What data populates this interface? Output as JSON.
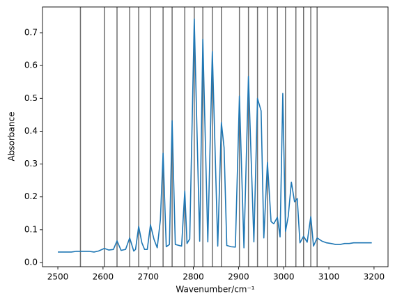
{
  "chart_data": {
    "type": "line",
    "xlabel": "Wavenumber/cm⁻¹",
    "ylabel": "Absorbance",
    "x": [
      2500,
      2510,
      2520,
      2530,
      2540,
      2550,
      2560,
      2570,
      2580,
      2590,
      2603,
      2613,
      2623,
      2631,
      2640,
      2650,
      2659,
      2668,
      2672,
      2679,
      2686,
      2692,
      2698,
      2705,
      2713,
      2720,
      2727,
      2733,
      2740,
      2747,
      2753,
      2760,
      2774,
      2781,
      2786,
      2792,
      2802,
      2814,
      2821,
      2832,
      2842,
      2854,
      2862,
      2868,
      2874,
      2884,
      2893,
      2902,
      2912,
      2922,
      2934,
      2942,
      2950,
      2956,
      2964,
      2972,
      2978,
      2986,
      2992,
      2998,
      3004,
      3010,
      3017,
      3024,
      3030,
      3036,
      3044,
      3052,
      3060,
      3066,
      3074,
      3085,
      3095,
      3105,
      3115,
      3125,
      3135,
      3145,
      3155,
      3165,
      3175,
      3185,
      3195
    ],
    "series": [
      {
        "color": "#1f77b4",
        "values": [
          0.032,
          0.032,
          0.032,
          0.032,
          0.034,
          0.034,
          0.034,
          0.034,
          0.032,
          0.035,
          0.043,
          0.038,
          0.04,
          0.066,
          0.037,
          0.04,
          0.075,
          0.035,
          0.04,
          0.11,
          0.06,
          0.04,
          0.04,
          0.115,
          0.07,
          0.045,
          0.13,
          0.333,
          0.048,
          0.055,
          0.432,
          0.055,
          0.05,
          0.218,
          0.058,
          0.072,
          0.742,
          0.065,
          0.68,
          0.063,
          0.643,
          0.05,
          0.427,
          0.35,
          0.052,
          0.048,
          0.047,
          0.507,
          0.045,
          0.567,
          0.063,
          0.5,
          0.462,
          0.075,
          0.305,
          0.125,
          0.118,
          0.138,
          0.078,
          0.515,
          0.095,
          0.14,
          0.245,
          0.185,
          0.195,
          0.06,
          0.08,
          0.062,
          0.14,
          0.05,
          0.075,
          0.065,
          0.06,
          0.058,
          0.055,
          0.055,
          0.058,
          0.058,
          0.06,
          0.06,
          0.06,
          0.06,
          0.06
        ]
      }
    ],
    "vlines": [
      2550,
      2603,
      2631,
      2659,
      2679,
      2705,
      2733,
      2753,
      2781,
      2802,
      2821,
      2842,
      2862,
      2902,
      2922,
      2942,
      2964,
      2986,
      3004,
      3027,
      3044,
      3060,
      3074
    ],
    "vline_color": "#555555",
    "xlim": [
      2466,
      3231
    ],
    "ylim": [
      -0.0127,
      0.7785
    ],
    "xticks": [
      2500,
      2600,
      2700,
      2800,
      2900,
      3000,
      3100,
      3200
    ],
    "yticks": [
      {
        "value": 0,
        "label": "0.0"
      },
      0.1,
      0.2,
      0.3,
      0.4,
      0.5,
      0.6,
      0.7
    ]
  }
}
